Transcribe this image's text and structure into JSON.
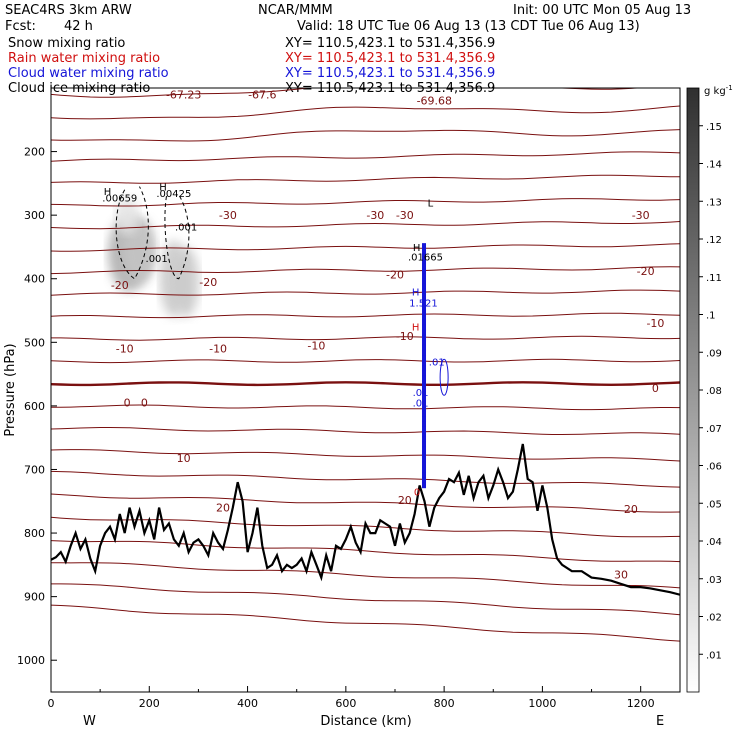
{
  "header": {
    "model": "SEAC4RS  3km ARW",
    "org": "NCAR/MMM",
    "init": "Init: 00 UTC Mon 05 Aug 13",
    "fcst_label": "Fcst:",
    "fcst_value": "42 h",
    "valid": "Valid: 18 UTC Tue 06 Aug 13 (13 CDT Tue 06 Aug 13)"
  },
  "fields": [
    {
      "name": "Snow mixing ratio",
      "xy": "XY= 110.5,423.1 to 531.4,356.9",
      "color": "#000000"
    },
    {
      "name": "Rain water mixing ratio",
      "xy": "XY= 110.5,423.1 to 531.4,356.9",
      "color": "#d01010"
    },
    {
      "name": "Cloud water mixing ratio",
      "xy": "XY= 110.5,423.1 to 531.4,356.9",
      "color": "#1515d8"
    },
    {
      "name": "Cloud ice mixing ratio",
      "xy": "XY= 110.5,423.1 to 531.4,356.9",
      "color": "#000000"
    }
  ],
  "chart_data": {
    "type": "contour-cross-section",
    "xlabel": "Distance (km)",
    "ylabel": "Pressure (hPa)",
    "xlim": [
      0,
      1280
    ],
    "ylim": [
      1050,
      100
    ],
    "x_ticks": [
      0,
      200,
      400,
      600,
      800,
      1000,
      1200
    ],
    "y_ticks": [
      200,
      300,
      400,
      500,
      600,
      700,
      800,
      900,
      1000
    ],
    "y_tick_labels": [
      "200",
      "300",
      "400",
      "500",
      "600",
      "700",
      "800",
      "900",
      "1000"
    ],
    "end_labels": {
      "left": "W",
      "right": "E"
    },
    "colorbar": {
      "unit": "g kg",
      "unit_exp": "-1",
      "ticks": [
        0.01,
        0.02,
        0.03,
        0.04,
        0.05,
        0.06,
        0.07,
        0.08,
        0.09,
        0.1,
        0.11,
        0.12,
        0.13,
        0.14,
        0.15
      ],
      "tick_labels": [
        ".01",
        ".02",
        ".03",
        ".04",
        ".05",
        ".06",
        ".07",
        ".08",
        ".09",
        ".1",
        ".11",
        ".12",
        ".13",
        ".14",
        ".15"
      ],
      "range": [
        0,
        0.16
      ]
    },
    "temperature_contours": [
      -69.68,
      -67.6,
      -67.23,
      -30,
      -20,
      -10,
      0,
      10,
      20,
      30
    ],
    "temperature_labels": [
      {
        "text": "-67.23",
        "x": 270,
        "p": 110
      },
      {
        "text": "-67.6",
        "x": 430,
        "p": 110
      },
      {
        "text": "-69.68",
        "x": 780,
        "p": 120
      },
      {
        "text": "-30",
        "x": 360,
        "p": 300
      },
      {
        "text": "-30",
        "x": 660,
        "p": 300
      },
      {
        "text": "-30",
        "x": 1200,
        "p": 300
      },
      {
        "text": "-30",
        "x": 720,
        "p": 300
      },
      {
        "text": "-20",
        "x": 140,
        "p": 410
      },
      {
        "text": "-20",
        "x": 320,
        "p": 405
      },
      {
        "text": "-20",
        "x": 700,
        "p": 393
      },
      {
        "text": "-20",
        "x": 1210,
        "p": 388
      },
      {
        "text": "-10",
        "x": 150,
        "p": 510
      },
      {
        "text": "-10",
        "x": 340,
        "p": 510
      },
      {
        "text": "-10",
        "x": 540,
        "p": 505
      },
      {
        "text": "-10",
        "x": 720,
        "p": 490
      },
      {
        "text": "-10",
        "x": 1230,
        "p": 470
      },
      {
        "text": "0",
        "x": 155,
        "p": 595
      },
      {
        "text": "0",
        "x": 190,
        "p": 595
      },
      {
        "text": "0",
        "x": 1230,
        "p": 572
      },
      {
        "text": "10",
        "x": 270,
        "p": 682
      },
      {
        "text": "20",
        "x": 350,
        "p": 760
      },
      {
        "text": "20",
        "x": 720,
        "p": 748
      },
      {
        "text": "20",
        "x": 1180,
        "p": 762
      },
      {
        "text": "30",
        "x": 1160,
        "p": 865
      }
    ],
    "hydrometeor_labels": [
      {
        "text": "H",
        "x": 115,
        "p": 262,
        "color": "#000000"
      },
      {
        "text": ".00659",
        "x": 140,
        "p": 272,
        "color": "#000000"
      },
      {
        "text": "H",
        "x": 228,
        "p": 255,
        "color": "#000000"
      },
      {
        "text": ".00425",
        "x": 250,
        "p": 265,
        "color": "#000000"
      },
      {
        "text": ".001",
        "x": 275,
        "p": 318,
        "color": "#000000"
      },
      {
        "text": ".001",
        "x": 215,
        "p": 367,
        "color": "#000000"
      },
      {
        "text": "H",
        "x": 744,
        "p": 350,
        "color": "#000000"
      },
      {
        "text": ".01665",
        "x": 762,
        "p": 365,
        "color": "#000000"
      },
      {
        "text": "L",
        "x": 772,
        "p": 280,
        "color": "#000000"
      },
      {
        "text": "H",
        "x": 742,
        "p": 420,
        "color": "#1515d8"
      },
      {
        "text": "1.521",
        "x": 758,
        "p": 437,
        "color": "#1515d8"
      },
      {
        "text": "H",
        "x": 742,
        "p": 475,
        "color": "#d01010"
      },
      {
        "text": ".01",
        "x": 785,
        "p": 530,
        "color": "#1515d8"
      },
      {
        "text": ".01",
        "x": 752,
        "p": 578,
        "color": "#1515d8"
      },
      {
        "text": ".01",
        "x": 752,
        "p": 595,
        "color": "#1515d8"
      },
      {
        "text": "0",
        "x": 745,
        "p": 735,
        "color": "#d01010"
      }
    ],
    "terrain": {
      "x": [
        0,
        10,
        20,
        30,
        40,
        50,
        60,
        70,
        80,
        90,
        100,
        110,
        120,
        130,
        140,
        150,
        160,
        170,
        180,
        190,
        200,
        210,
        220,
        230,
        240,
        250,
        260,
        270,
        280,
        290,
        300,
        310,
        320,
        330,
        340,
        350,
        360,
        370,
        380,
        390,
        400,
        410,
        420,
        430,
        440,
        450,
        460,
        470,
        480,
        490,
        500,
        510,
        520,
        530,
        540,
        550,
        560,
        570,
        580,
        590,
        600,
        610,
        620,
        630,
        640,
        650,
        660,
        670,
        680,
        690,
        700,
        710,
        720,
        730,
        740,
        750,
        760,
        770,
        780,
        790,
        800,
        810,
        820,
        830,
        840,
        850,
        860,
        870,
        880,
        890,
        900,
        910,
        920,
        930,
        940,
        950,
        960,
        970,
        980,
        990,
        1000,
        1010,
        1020,
        1030,
        1040,
        1060,
        1080,
        1100,
        1120,
        1140,
        1160,
        1180,
        1200,
        1220,
        1240,
        1260,
        1280
      ],
      "p": [
        842,
        838,
        830,
        845,
        820,
        800,
        825,
        810,
        840,
        860,
        820,
        800,
        790,
        810,
        770,
        800,
        760,
        790,
        765,
        800,
        780,
        810,
        760,
        795,
        785,
        810,
        820,
        800,
        830,
        815,
        810,
        820,
        835,
        800,
        815,
        825,
        795,
        760,
        720,
        750,
        830,
        800,
        760,
        820,
        855,
        850,
        835,
        860,
        850,
        855,
        850,
        840,
        860,
        830,
        850,
        870,
        835,
        860,
        820,
        825,
        810,
        790,
        815,
        830,
        785,
        800,
        800,
        780,
        785,
        790,
        820,
        785,
        815,
        800,
        770,
        725,
        750,
        790,
        760,
        745,
        735,
        715,
        720,
        705,
        740,
        710,
        745,
        720,
        710,
        745,
        725,
        700,
        720,
        745,
        735,
        700,
        660,
        715,
        720,
        765,
        725,
        760,
        810,
        840,
        850,
        860,
        860,
        870,
        872,
        875,
        880,
        885,
        885,
        887,
        890,
        893,
        897
      ]
    },
    "snow_shading": [
      {
        "x": 160,
        "p": 360,
        "rx": 18,
        "rp": 60,
        "value": 0.06
      },
      {
        "x": 180,
        "p": 355,
        "rx": 14,
        "rp": 50,
        "value": 0.045
      },
      {
        "x": 250,
        "p": 400,
        "rx": 12,
        "rp": 60,
        "value": 0.04
      },
      {
        "x": 275,
        "p": 405,
        "rx": 11,
        "rp": 55,
        "value": 0.04
      },
      {
        "x": 155,
        "p": 300,
        "rx": 10,
        "rp": 30,
        "value": 0.02
      }
    ]
  }
}
